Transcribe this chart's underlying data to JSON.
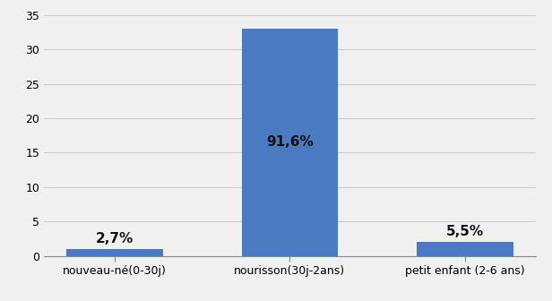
{
  "categories": [
    "nouveau-né(0-30j)",
    "nourisson(30j-2ans)",
    "petit enfant (2-6 ans)"
  ],
  "values": [
    1.0,
    33.0,
    2.0
  ],
  "labels": [
    "2,7%",
    "91,6%",
    "5,5%"
  ],
  "label_inside": [
    false,
    true,
    false
  ],
  "label_inside_pos": [
    null,
    16.5,
    null
  ],
  "bar_color": "#4a7bc2",
  "ylim": [
    0,
    35
  ],
  "yticks": [
    0,
    5,
    10,
    15,
    20,
    25,
    30,
    35
  ],
  "background_color": "#f0f0f0",
  "grid_color": "#cccccc",
  "label_fontsize": 11,
  "tick_fontsize": 9,
  "label_color": "#111111",
  "bar_width": 0.55
}
